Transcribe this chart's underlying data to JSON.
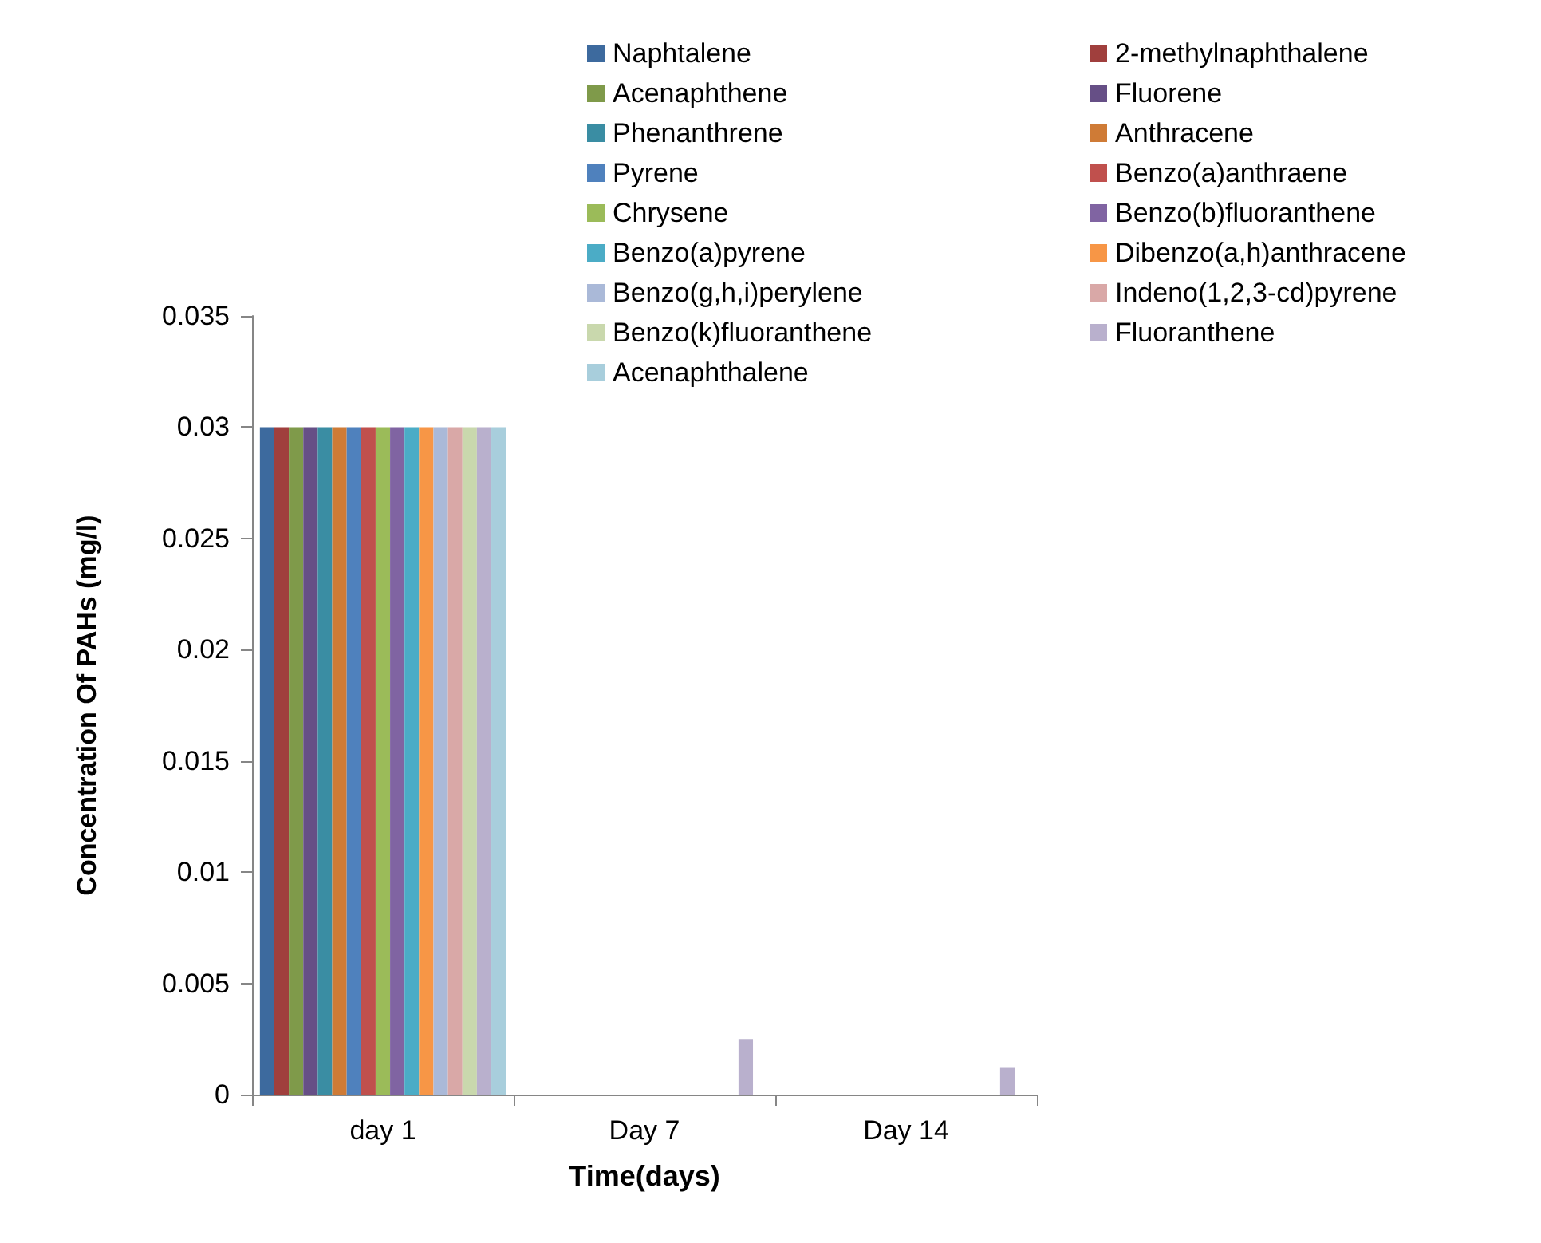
{
  "chart_data": {
    "type": "bar",
    "xlabel": "Time(days)",
    "ylabel": "Concentration Of PAHs (mg/l)",
    "categories": [
      "day 1",
      "Day 7",
      "Day 14"
    ],
    "ylim": [
      0,
      0.035
    ],
    "yticks": [
      0,
      0.005,
      0.01,
      0.015,
      0.02,
      0.025,
      0.03,
      0.035
    ],
    "grid": false,
    "legend": "top right",
    "series": [
      {
        "name": "Naphtalene",
        "color": "#3d6a9e",
        "values": [
          0.03,
          0,
          0
        ]
      },
      {
        "name": "2-methylnaphthalene",
        "color": "#a03f3d",
        "values": [
          0.03,
          0,
          0
        ]
      },
      {
        "name": "Acenaphthene",
        "color": "#7f9a4a",
        "values": [
          0.03,
          0,
          0
        ]
      },
      {
        "name": "Fluorene",
        "color": "#664f86",
        "values": [
          0.03,
          0,
          0
        ]
      },
      {
        "name": "Phenanthrene",
        "color": "#3a8da3",
        "values": [
          0.03,
          0,
          0
        ]
      },
      {
        "name": "Anthracene",
        "color": "#cf7b36",
        "values": [
          0.03,
          0,
          0
        ]
      },
      {
        "name": "Pyrene",
        "color": "#4f81bd",
        "values": [
          0.03,
          0,
          0
        ]
      },
      {
        "name": "Benzo(a)anthraene",
        "color": "#c0504d",
        "values": [
          0.03,
          0,
          0
        ]
      },
      {
        "name": "Chrysene",
        "color": "#9bbb59",
        "values": [
          0.03,
          0,
          0
        ]
      },
      {
        "name": "Benzo(b)fluoranthene",
        "color": "#8064a2",
        "values": [
          0.03,
          0,
          0
        ]
      },
      {
        "name": "Benzo(a)pyrene",
        "color": "#4bacc6",
        "values": [
          0.03,
          0,
          0
        ]
      },
      {
        "name": "Dibenzo(a,h)anthracene",
        "color": "#f79646",
        "values": [
          0.03,
          0,
          0
        ]
      },
      {
        "name": "Benzo(g,h,i)perylene",
        "color": "#aab9d8",
        "values": [
          0.03,
          0,
          0
        ]
      },
      {
        "name": "Indeno(1,2,3-cd)pyrene",
        "color": "#d9a8a7",
        "values": [
          0.03,
          0,
          0
        ]
      },
      {
        "name": "Benzo(k)fluoranthene",
        "color": "#c9d8ad",
        "values": [
          0.03,
          0,
          0
        ]
      },
      {
        "name": "Fluoranthene",
        "color": "#b9b0cd",
        "values": [
          0.03,
          0.0025,
          0.0012
        ]
      },
      {
        "name": "Acenaphthalene",
        "color": "#a8cedc",
        "values": [
          0.03,
          0,
          0
        ]
      }
    ]
  }
}
